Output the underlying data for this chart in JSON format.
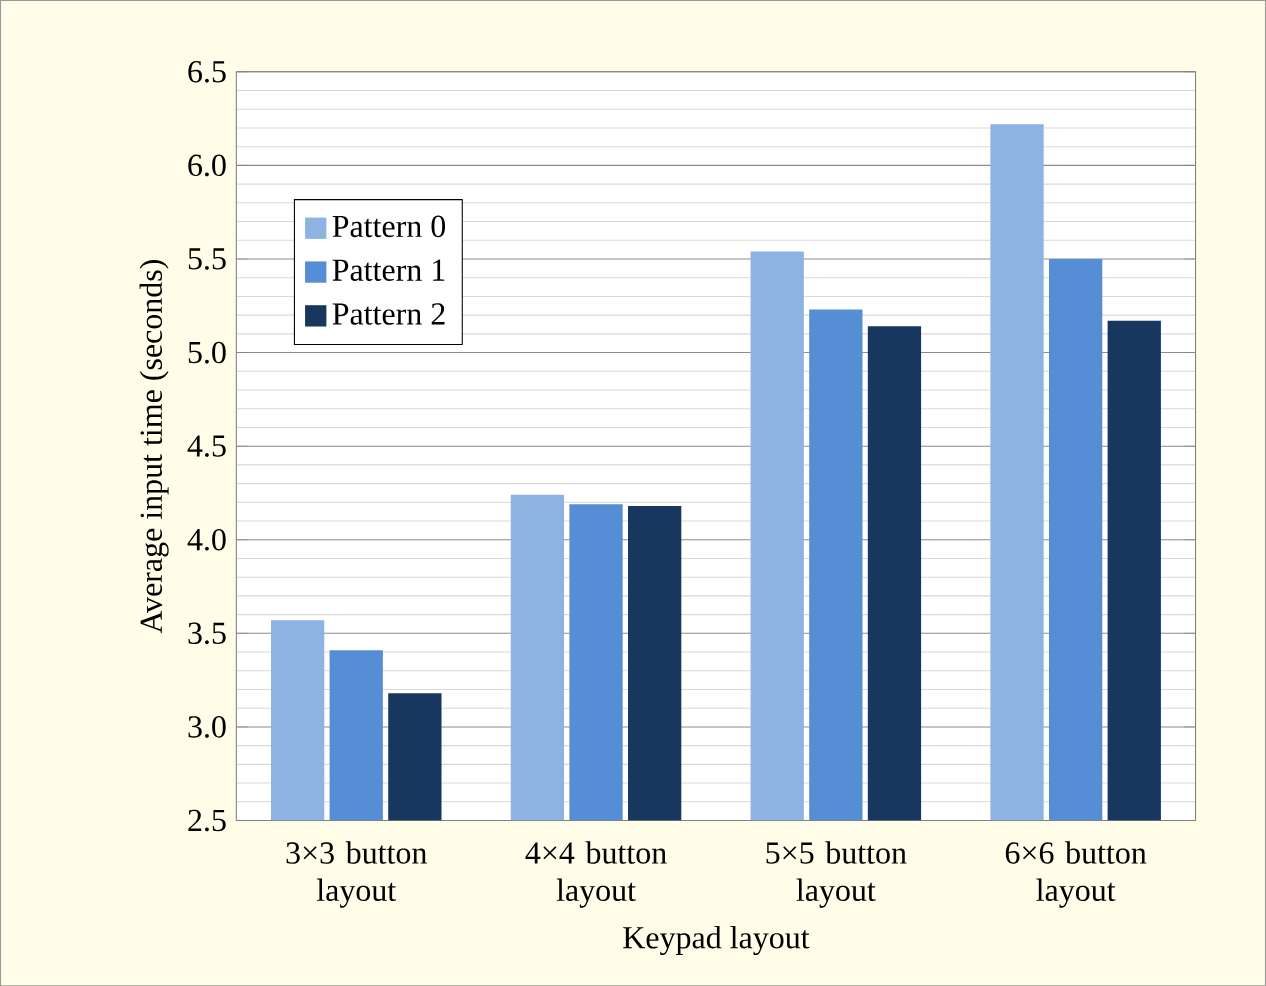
{
  "chart_data": {
    "type": "bar",
    "xlabel": "Keypad layout",
    "ylabel": "Average input time (seconds)",
    "categories": [
      "3×3 button layout",
      "4×4 button layout",
      "5×5 button layout",
      "6×6 button layout"
    ],
    "series": [
      {
        "name": "Pattern 0",
        "color": "#8db3e2",
        "values": [
          3.57,
          4.24,
          5.54,
          6.22
        ]
      },
      {
        "name": "Pattern 1",
        "color": "#558ed5",
        "values": [
          3.41,
          4.19,
          5.23,
          5.5
        ]
      },
      {
        "name": "Pattern 2",
        "color": "#17375e",
        "values": [
          3.18,
          4.18,
          5.14,
          5.17
        ]
      }
    ],
    "ylim": [
      2.5,
      6.5
    ],
    "yticks": [
      {
        "value": 2.5,
        "label": "2.5"
      },
      {
        "value": 3,
        "label": "3.0"
      },
      {
        "value": 3.5,
        "label": "3.5"
      },
      {
        "value": 4,
        "label": "4.0"
      },
      {
        "value": 4.5,
        "label": "4.5"
      },
      {
        "value": 5,
        "label": "5.0"
      },
      {
        "value": 5.5,
        "label": "5.5"
      },
      {
        "value": 6,
        "label": "6.0"
      },
      {
        "value": 6.5,
        "label": "6.5"
      }
    ],
    "grid": "y",
    "legend": "top left"
  }
}
